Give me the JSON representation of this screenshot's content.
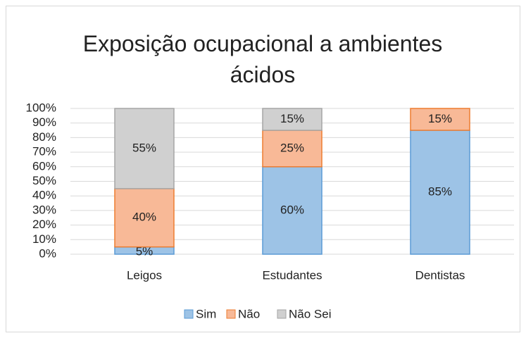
{
  "chart_data": {
    "type": "stacked_bar",
    "title": "Exposição ocupacional a ambientes ácidos",
    "categories": [
      "Leigos",
      "Estudantes",
      "Dentistas"
    ],
    "series": [
      {
        "name": "Sim",
        "color": "#9dc3e6",
        "values": [
          5,
          60,
          85
        ],
        "value_labels": [
          "5%",
          "60%",
          "85%"
        ]
      },
      {
        "name": "Não",
        "color": "#f8b997",
        "values": [
          40,
          25,
          15
        ],
        "value_labels": [
          "40%",
          "25%",
          "15%"
        ]
      },
      {
        "name": "Não Sei",
        "color": "#d0d0d0",
        "values": [
          55,
          15,
          0
        ],
        "value_labels": [
          "55%",
          "15%",
          null
        ]
      }
    ],
    "ylim": [
      0,
      100
    ],
    "yticks": [
      {
        "value": 0,
        "label": "0%"
      },
      {
        "value": 10,
        "label": "10%"
      },
      {
        "value": 20,
        "label": "20%"
      },
      {
        "value": 30,
        "label": "30%"
      },
      {
        "value": 40,
        "label": "40%"
      },
      {
        "value": 50,
        "label": "50%"
      },
      {
        "value": 60,
        "label": "60%"
      },
      {
        "value": 70,
        "label": "70%"
      },
      {
        "value": 80,
        "label": "80%"
      },
      {
        "value": 90,
        "label": "90%"
      },
      {
        "value": 100,
        "label": "100%"
      }
    ],
    "grid": true,
    "legend": "bottom"
  }
}
